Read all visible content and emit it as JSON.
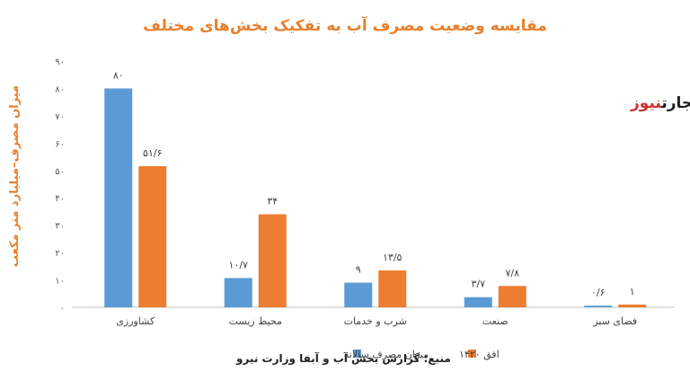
{
  "chart_data": {
    "type": "bar",
    "title": "مقایسه وضعیت مصرف آب به تفکیک بخش‌های مختلف",
    "ylabel": "میزان مصرف–میلیارد متر مکعب",
    "ylim": [
      0,
      90
    ],
    "yticks": [
      0,
      10,
      20,
      30,
      40,
      50,
      60,
      70,
      80,
      90
    ],
    "ytick_labels": [
      "۰",
      "۱۰",
      "۲۰",
      "۳۰",
      "۴۰",
      "۵۰",
      "۶۰",
      "۷۰",
      "۸۰",
      "۹۰"
    ],
    "categories": [
      "کشاورزی",
      "محیط زیست",
      "شرب و خدمات",
      "صنعت",
      "فضای سبز"
    ],
    "series": [
      {
        "name": "میزان مصرف سالانه",
        "color": "#5b9bd5",
        "values": [
          80,
          10.7,
          9,
          3.7,
          0.6
        ],
        "labels": [
          "۸۰",
          "۱۰/۷",
          "۹",
          "۳/۷",
          "۰/۶"
        ]
      },
      {
        "name": "افق ۱۴۲۰",
        "color": "#ed7d31",
        "values": [
          51.6,
          34,
          13.5,
          7.8,
          1
        ],
        "labels": [
          "۵۱/۶",
          "۳۴",
          "۱۳/۵",
          "۷/۸",
          "۱"
        ]
      }
    ],
    "grid": false,
    "legend_position": "bottom"
  },
  "source": "منبع: گزارش بخش آب و آبفا وزارت نیرو",
  "logo": {
    "part1": "تجارت",
    "part2": "نیوز"
  }
}
